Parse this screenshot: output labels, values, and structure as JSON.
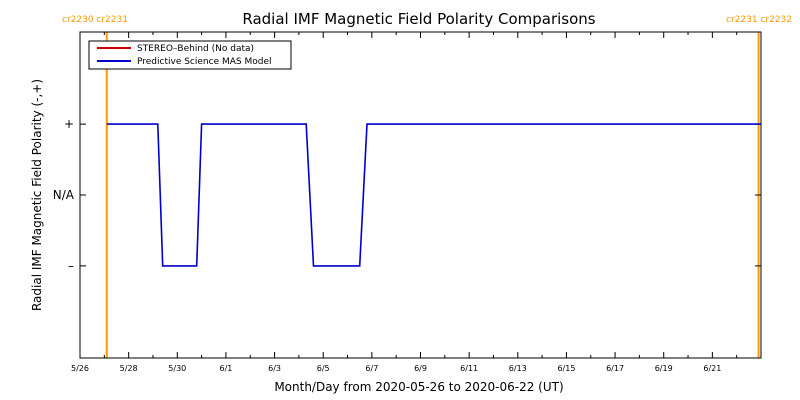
{
  "chart_data": {
    "type": "line",
    "title": "Radial IMF Magnetic Field Polarity Comparisons",
    "xlabel": "Month/Day from 2020-05-26 to 2020-06-22 (UT)",
    "ylabel": "Radial IMF Magnetic Field Polarity (-,+)",
    "xlim": [
      0,
      28
    ],
    "ylim": [
      -2.3,
      2.3
    ],
    "x_ticks": [
      {
        "x": 0,
        "label": "5/26"
      },
      {
        "x": 2,
        "label": "5/28"
      },
      {
        "x": 4,
        "label": "5/30"
      },
      {
        "x": 6,
        "label": "6/1"
      },
      {
        "x": 8,
        "label": "6/3"
      },
      {
        "x": 10,
        "label": "6/5"
      },
      {
        "x": 12,
        "label": "6/7"
      },
      {
        "x": 14,
        "label": "6/9"
      },
      {
        "x": 16,
        "label": "6/11"
      },
      {
        "x": 18,
        "label": "6/13"
      },
      {
        "x": 20,
        "label": "6/15"
      },
      {
        "x": 22,
        "label": "6/17"
      },
      {
        "x": 24,
        "label": "6/19"
      },
      {
        "x": 26,
        "label": "6/21"
      }
    ],
    "y_ticks": [
      {
        "y": 1,
        "label": "+"
      },
      {
        "y": 0,
        "label": "N/A"
      },
      {
        "y": -1,
        "label": "–"
      }
    ],
    "legend": {
      "placement": "top-left",
      "entries": [
        {
          "label": "STEREO–Behind (No data)",
          "color": "#cc0000"
        },
        {
          "label": "Predictive Science MAS Model",
          "color": "#0000cc"
        }
      ]
    },
    "series": [
      {
        "name": "Predictive Science MAS Model",
        "color": "#0000cc",
        "x": [
          1.1,
          3.2,
          3.4,
          4.8,
          5.0,
          9.3,
          9.6,
          11.5,
          11.8,
          28.0
        ],
        "y": [
          1,
          1,
          -1,
          -1,
          1,
          1,
          -1,
          -1,
          1,
          1
        ]
      }
    ],
    "carrington_markers": [
      {
        "x": 1.1,
        "label": "cr2230 cr2231",
        "color": "#ff9900",
        "label_side": "left"
      },
      {
        "x": 27.9,
        "label": "cr2231 cr2232",
        "color": "#ff9900",
        "label_side": "right"
      }
    ]
  }
}
